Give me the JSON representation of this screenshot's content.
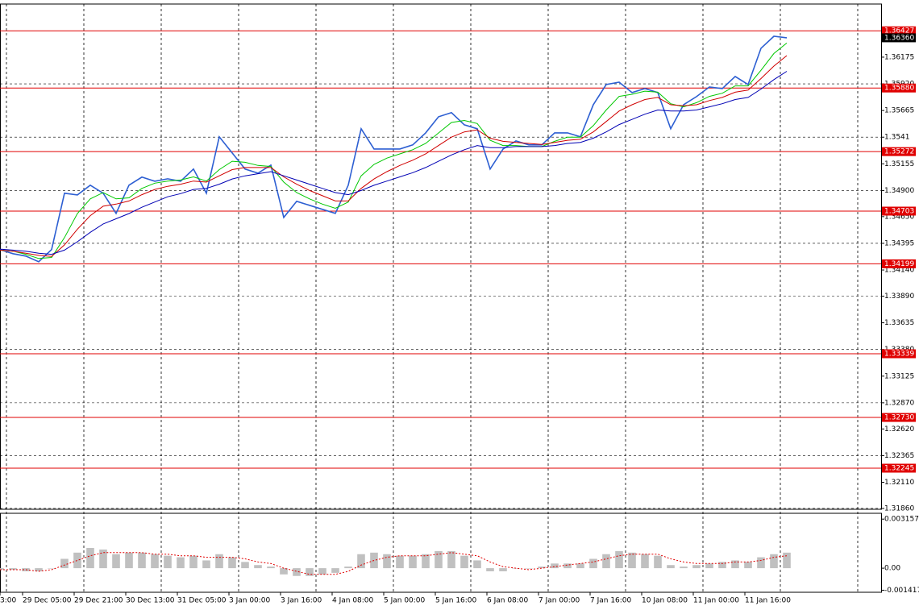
{
  "chart_data": [
    {
      "type": "line",
      "xlim": [
        0,
        68.3125
      ],
      "ylim": [
        1.31852,
        1.36683
      ],
      "xticks": [
        {
          "value": 0,
          "label": "3:00"
        },
        {
          "value": 1.75,
          "label": "29 Dec 05:00"
        },
        {
          "value": 5.75,
          "label": "29 Dec 21:00"
        },
        {
          "value": 9.75,
          "label": "30 Dec 13:00"
        },
        {
          "value": 13.75,
          "label": "31 Dec 05:00"
        },
        {
          "value": 17.75,
          "label": "3 Jan 00:00"
        },
        {
          "value": 21.75,
          "label": "3 Jan 16:00"
        },
        {
          "value": 25.75,
          "label": "4 Jan 08:00"
        },
        {
          "value": 29.75,
          "label": "5 Jan 00:00"
        },
        {
          "value": 33.75,
          "label": "5 Jan 16:00"
        },
        {
          "value": 37.75,
          "label": "6 Jan 08:00"
        },
        {
          "value": 41.75,
          "label": "7 Jan 00:00"
        },
        {
          "value": 45.75,
          "label": "7 Jan 16:00"
        },
        {
          "value": 49.75,
          "label": "10 Jan 08:00"
        },
        {
          "value": 53.75,
          "label": "11 Jan 00:00"
        },
        {
          "value": 57.75,
          "label": "11 Jan 16:00"
        }
      ],
      "yticks": [
        1.36175,
        {
          "value": 1.3592,
          "label": "1.35920"
        },
        1.35665,
        1.3541,
        1.35155,
        {
          "value": 1.349,
          "label": "1.34900"
        },
        {
          "value": 1.3465,
          "label": "1.34650"
        },
        1.34395,
        {
          "value": 1.3414,
          "label": "1.34140"
        },
        {
          "value": 1.3389,
          "label": "1.33890"
        },
        1.33635,
        {
          "value": 1.3338,
          "label": "1.33380"
        },
        1.33125,
        {
          "value": 1.3287,
          "label": "1.32870"
        },
        {
          "value": 1.3262,
          "label": "1.32620"
        },
        1.32365,
        {
          "value": 1.3211,
          "label": "1.32110"
        },
        {
          "value": 1.3186,
          "label": "1.31860"
        }
      ],
      "grid": true,
      "levels": [
        {
          "value": 1.36427,
          "label": "1.36427"
        },
        {
          "value": 1.3588,
          "label": "1.35880"
        },
        1.35272,
        1.34703,
        1.34199,
        1.33339,
        {
          "value": 1.3273,
          "label": "1.32730"
        },
        1.32245
      ],
      "level_color": "#e00000",
      "current": {
        "value": 1.3636,
        "label": "1.36360"
      },
      "series": [
        {
          "color": "#2d5fd2",
          "values": [
            1.34335,
            1.34296,
            1.34273,
            1.34219,
            1.34335,
            1.34874,
            1.34858,
            1.34951,
            1.34874,
            1.34681,
            1.34951,
            1.35028,
            1.34989,
            1.35012,
            1.34989,
            1.35105,
            1.34874,
            1.35413,
            1.35259,
            1.35105,
            1.35066,
            1.35143,
            1.34643,
            1.34797,
            1.34758,
            1.3472,
            1.34681,
            1.34951,
            1.3549,
            1.35297,
            1.35297,
            1.35297,
            1.35336,
            1.35451,
            1.35605,
            1.35644,
            1.35528,
            1.3549,
            1.35105,
            1.35297,
            1.35374,
            1.35336,
            1.35336,
            1.35451,
            1.35451,
            1.35413,
            1.35721,
            1.35913,
            1.35936,
            1.35836,
            1.35875,
            1.35836,
            1.3549,
            1.35721,
            1.35798,
            1.3589,
            1.35875,
            1.3599,
            1.35913,
            1.3626,
            1.36375,
            1.3636
          ]
        },
        {
          "color": "#00c800",
          "values": [
            1.3433,
            1.3432,
            1.3429,
            1.3425,
            1.3426,
            1.3445,
            1.3468,
            1.3482,
            1.3488,
            1.3482,
            1.3483,
            1.3492,
            1.3497,
            1.3499,
            1.35,
            1.3503,
            1.3499,
            1.351,
            1.3518,
            1.3517,
            1.3514,
            1.3513,
            1.3498,
            1.3488,
            1.3482,
            1.3477,
            1.3473,
            1.3479,
            1.3504,
            1.3515,
            1.3521,
            1.3525,
            1.3529,
            1.3535,
            1.3545,
            1.3555,
            1.3557,
            1.3554,
            1.3538,
            1.3533,
            1.3533,
            1.3532,
            1.3532,
            1.3537,
            1.3541,
            1.3541,
            1.3552,
            1.3567,
            1.358,
            1.3582,
            1.3585,
            1.3584,
            1.3573,
            1.357,
            1.3574,
            1.358,
            1.3583,
            1.359,
            1.359,
            1.3605,
            1.3621,
            1.3631
          ]
        },
        {
          "color": "#d00000",
          "values": [
            1.3433,
            1.3432,
            1.343,
            1.3428,
            1.3427,
            1.3438,
            1.3453,
            1.3466,
            1.3475,
            1.3477,
            1.348,
            1.3486,
            1.3491,
            1.3494,
            1.3496,
            1.3499,
            1.3498,
            1.3504,
            1.351,
            1.3512,
            1.3512,
            1.3512,
            1.3503,
            1.3496,
            1.349,
            1.3485,
            1.348,
            1.348,
            1.3492,
            1.3501,
            1.3508,
            1.3514,
            1.3519,
            1.3525,
            1.3533,
            1.3541,
            1.3546,
            1.3548,
            1.354,
            1.3537,
            1.3536,
            1.3535,
            1.3534,
            1.3536,
            1.3538,
            1.3539,
            1.3546,
            1.3556,
            1.3566,
            1.3572,
            1.3577,
            1.3579,
            1.3572,
            1.3571,
            1.3572,
            1.3576,
            1.3579,
            1.3584,
            1.3586,
            1.3597,
            1.3609,
            1.3619
          ]
        },
        {
          "color": "#0000b4",
          "values": [
            1.3434,
            1.3433,
            1.3432,
            1.343,
            1.3429,
            1.3433,
            1.3441,
            1.345,
            1.3458,
            1.3463,
            1.3468,
            1.3474,
            1.3479,
            1.3484,
            1.3487,
            1.3491,
            1.3492,
            1.3496,
            1.3501,
            1.3504,
            1.3506,
            1.3508,
            1.3504,
            1.35,
            1.3496,
            1.3492,
            1.3488,
            1.3486,
            1.349,
            1.3495,
            1.3499,
            1.3503,
            1.3507,
            1.3512,
            1.3518,
            1.3524,
            1.3529,
            1.3533,
            1.3531,
            1.3531,
            1.3532,
            1.3532,
            1.3532,
            1.3533,
            1.3535,
            1.3536,
            1.354,
            1.3546,
            1.3553,
            1.3558,
            1.3563,
            1.3567,
            1.3566,
            1.3566,
            1.3567,
            1.357,
            1.3573,
            1.3577,
            1.3579,
            1.3587,
            1.3596,
            1.3604
          ]
        }
      ]
    },
    {
      "type": "macd",
      "xlim": [
        0,
        68.3125
      ],
      "ylim": [
        -0.00155,
        0.00353
      ],
      "yticks": [
        0.003157,
        {
          "value": 0,
          "label": "0.00"
        },
        -0.001417
      ],
      "histogram": {
        "color": "#c0c0c0",
        "values": [
          -0.0001,
          -0.0001,
          -0.0002,
          -0.0002,
          0,
          0.0006,
          0.001,
          0.0013,
          0.0012,
          0.0009,
          0.001,
          0.001,
          0.0009,
          0.0008,
          0.0007,
          0.0008,
          0.0005,
          0.0009,
          0.0007,
          0.0004,
          0.0002,
          0.0001,
          -0.0004,
          -0.0005,
          -0.0005,
          -0.0004,
          -0.0003,
          0.0001,
          0.0009,
          0.001,
          0.0009,
          0.0008,
          0.0008,
          0.0009,
          0.0011,
          0.0011,
          0.0008,
          0.0005,
          -0.0002,
          -0.0002,
          0,
          0,
          0.0001,
          0.0003,
          0.0003,
          0.0003,
          0.0006,
          0.0009,
          0.0011,
          0.001,
          0.0009,
          0.0008,
          0.0002,
          0.0001,
          0.0002,
          0.0003,
          0.0004,
          0.0005,
          0.0004,
          0.0007,
          0.0009,
          0.001
        ]
      },
      "signal": {
        "color": "#e00000",
        "values": [
          -0.0001,
          -0.0001,
          -0.0001,
          -0.0002,
          -0.0001,
          0.0002,
          0.0005,
          0.0008,
          0.001,
          0.001,
          0.001,
          0.001,
          0.0009,
          0.0009,
          0.0008,
          0.0008,
          0.0007,
          0.0007,
          0.0007,
          0.0006,
          0.0004,
          0.0003,
          0,
          -0.0002,
          -0.0004,
          -0.0004,
          -0.0004,
          -0.0002,
          0.0002,
          0.0005,
          0.0007,
          0.0008,
          0.0008,
          0.0008,
          0.0009,
          0.001,
          0.0009,
          0.0008,
          0.0004,
          0.0001,
          0,
          -0.0001,
          0,
          0.0001,
          0.0002,
          0.0003,
          0.0004,
          0.0006,
          0.0008,
          0.0009,
          0.0009,
          0.0009,
          0.0006,
          0.0004,
          0.0003,
          0.0003,
          0.0003,
          0.0004,
          0.0004,
          0.0005,
          0.0007,
          0.0008
        ]
      }
    }
  ]
}
